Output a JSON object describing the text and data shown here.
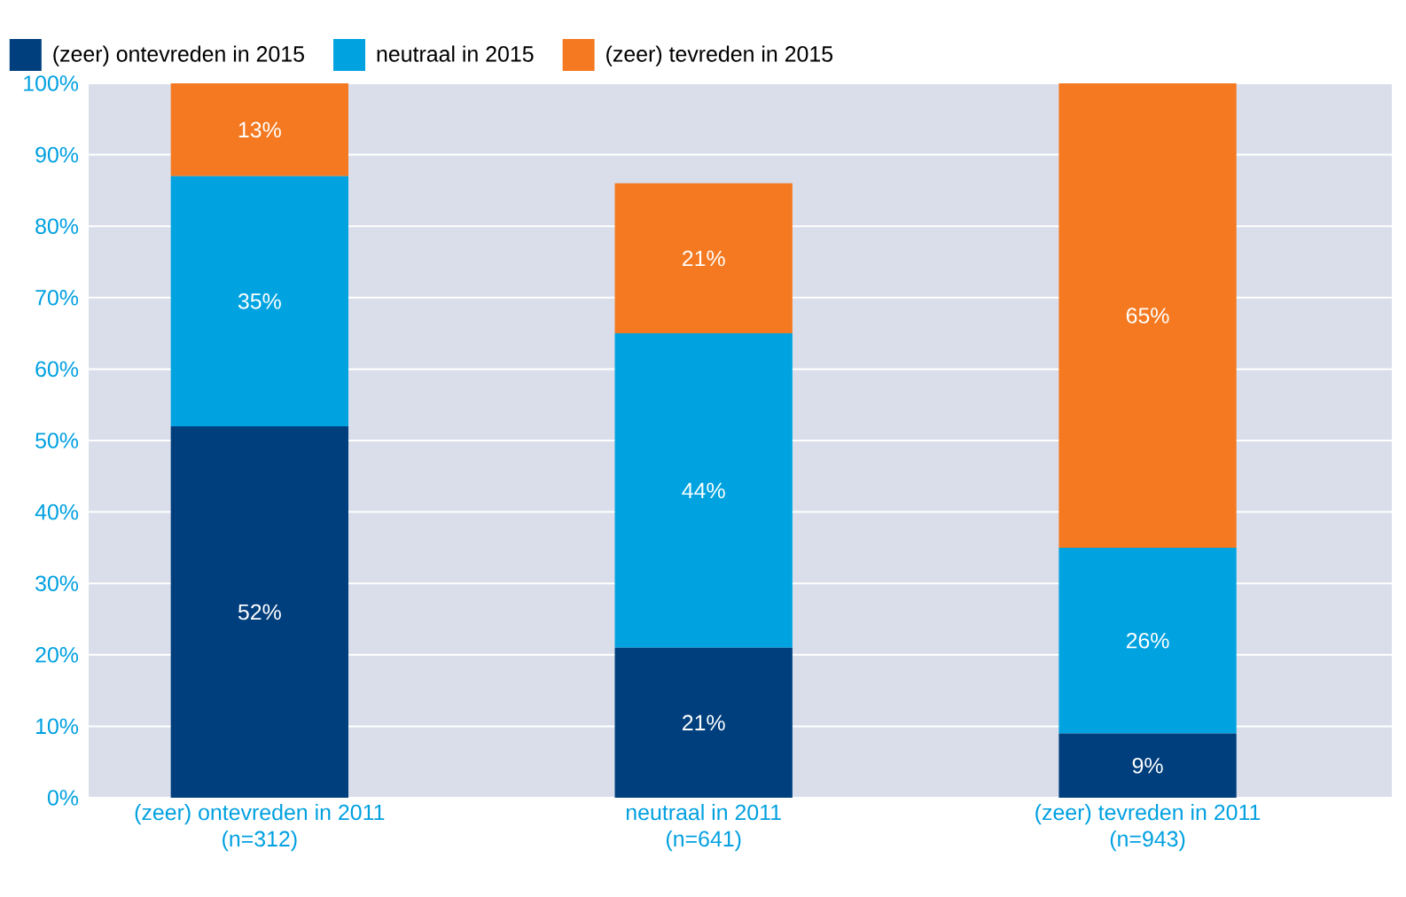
{
  "chart_data": {
    "type": "bar",
    "stacked": true,
    "categories": [
      "(zeer) ontevreden in 2011\n(n=312)",
      "neutraal in 2011\n(n=641)",
      "(zeer) tevreden in 2011\n(n=943)"
    ],
    "series": [
      {
        "name": "(zeer) ontevreden in 2015",
        "color": "#003f7d",
        "values": [
          52,
          21,
          9
        ],
        "value_labels": [
          "52%",
          "21%",
          "9%"
        ]
      },
      {
        "name": "neutraal in 2015",
        "color": "#00a3e0",
        "values": [
          35,
          44,
          26
        ],
        "value_labels": [
          "35%",
          "44%",
          "26%"
        ]
      },
      {
        "name": "(zeer) tevreden in 2015",
        "color": "#f47920",
        "values": [
          13,
          21,
          65
        ],
        "value_labels": [
          "13%",
          "21%",
          "65%"
        ]
      }
    ],
    "ylim": [
      0,
      100
    ],
    "yticks": [
      {
        "value": 0,
        "label": "0%"
      },
      {
        "value": 10,
        "label": "10%"
      },
      {
        "value": 20,
        "label": "20%"
      },
      {
        "value": 30,
        "label": "30%"
      },
      {
        "value": 40,
        "label": "40%"
      },
      {
        "value": 50,
        "label": "50%"
      },
      {
        "value": 60,
        "label": "60%"
      },
      {
        "value": 70,
        "label": "70%"
      },
      {
        "value": 80,
        "label": "80%"
      },
      {
        "value": 90,
        "label": "90%"
      },
      {
        "value": 100,
        "label": "100%"
      }
    ],
    "grid": "y",
    "legend": "top left"
  }
}
